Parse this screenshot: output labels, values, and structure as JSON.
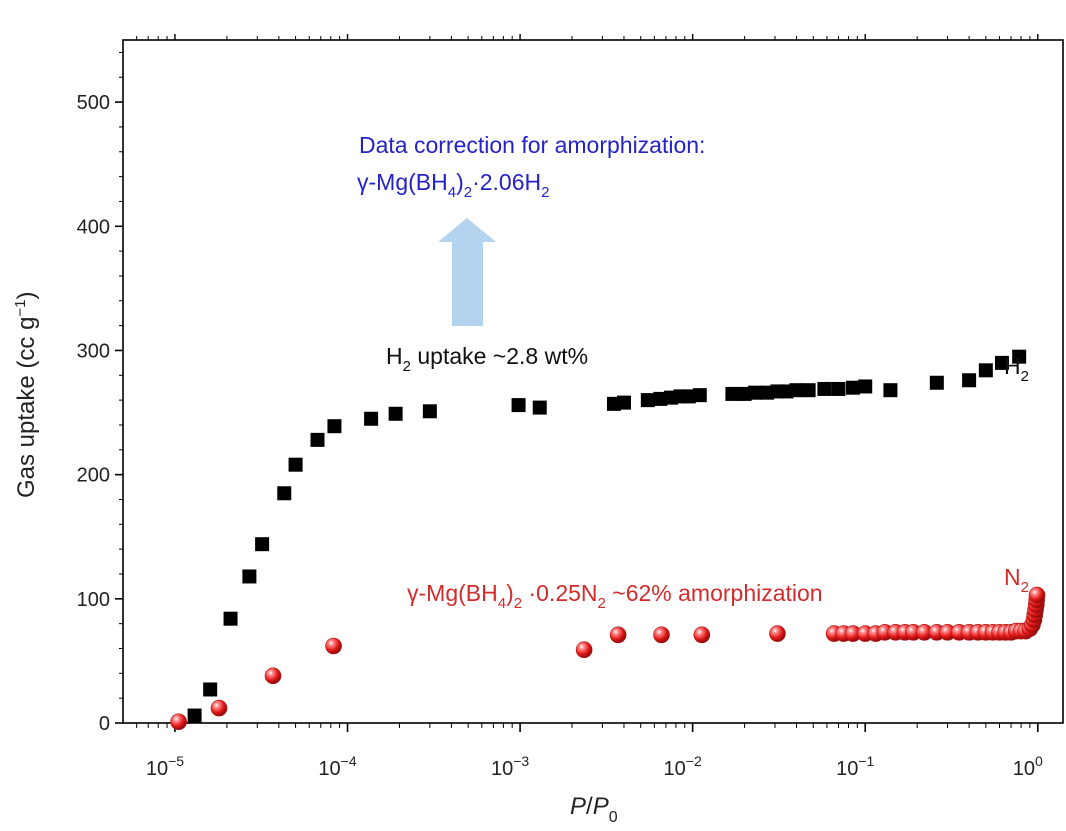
{
  "chart_data": {
    "type": "scatter",
    "xscale": "log",
    "xlim": [
      5e-06,
      1.4
    ],
    "ylim": [
      0,
      550
    ],
    "xlabel": {
      "main": "P",
      "sep": "/",
      "main2": "P",
      "sub": "0"
    },
    "ylabel": {
      "main": "Gas uptake (cc g",
      "sup": "−1",
      "end": ")"
    },
    "x_ticks": [
      {
        "value": 1e-05,
        "base": "10",
        "exp": "−5"
      },
      {
        "value": 0.0001,
        "base": "10",
        "exp": "−4"
      },
      {
        "value": 0.001,
        "base": "10",
        "exp": "−3"
      },
      {
        "value": 0.01,
        "base": "10",
        "exp": "−2"
      },
      {
        "value": 0.1,
        "base": "10",
        "exp": "−1"
      },
      {
        "value": 1,
        "base": "10",
        "exp": "0"
      }
    ],
    "y_ticks": [
      {
        "value": 0,
        "label": "0"
      },
      {
        "value": 100,
        "label": "100"
      },
      {
        "value": 200,
        "label": "200"
      },
      {
        "value": 300,
        "label": "300"
      },
      {
        "value": 400,
        "label": "400"
      },
      {
        "value": 500,
        "label": "500"
      }
    ],
    "series": [
      {
        "name": "H2",
        "label": {
          "main": "H",
          "sub": "2"
        },
        "marker": "square",
        "color": "#000000",
        "points": [
          [
            1.3e-05,
            6
          ],
          [
            1.6e-05,
            27
          ],
          [
            2.1e-05,
            84
          ],
          [
            2.7e-05,
            118
          ],
          [
            3.2e-05,
            144
          ],
          [
            4.3e-05,
            185
          ],
          [
            5e-05,
            208
          ],
          [
            6.7e-05,
            228
          ],
          [
            8.4e-05,
            239
          ],
          [
            0.000137,
            245
          ],
          [
            0.00019,
            249
          ],
          [
            0.0003,
            251
          ],
          [
            0.00098,
            256
          ],
          [
            0.0013,
            254
          ],
          [
            0.0035,
            257
          ],
          [
            0.004,
            258
          ],
          [
            0.0055,
            260
          ],
          [
            0.0065,
            261
          ],
          [
            0.0075,
            262
          ],
          [
            0.0085,
            263
          ],
          [
            0.0095,
            263
          ],
          [
            0.011,
            264
          ],
          [
            0.017,
            265
          ],
          [
            0.02,
            265
          ],
          [
            0.023,
            266
          ],
          [
            0.027,
            266
          ],
          [
            0.031,
            267
          ],
          [
            0.035,
            267
          ],
          [
            0.04,
            268
          ],
          [
            0.047,
            268
          ],
          [
            0.058,
            269
          ],
          [
            0.07,
            269
          ],
          [
            0.085,
            270
          ],
          [
            0.1,
            271
          ],
          [
            0.14,
            268
          ],
          [
            0.26,
            274
          ],
          [
            0.4,
            276
          ],
          [
            0.5,
            284
          ],
          [
            0.62,
            290
          ],
          [
            0.78,
            295
          ]
        ]
      },
      {
        "name": "N2",
        "label": {
          "main": "N",
          "sub": "2"
        },
        "marker": "sphere",
        "color": "#dd1b1b",
        "points": [
          [
            1.05e-05,
            1
          ],
          [
            1.8e-05,
            12
          ],
          [
            3.7e-05,
            38
          ],
          [
            8.3e-05,
            62
          ],
          [
            0.00235,
            59
          ],
          [
            0.0037,
            71
          ],
          [
            0.0066,
            71
          ],
          [
            0.0113,
            71
          ],
          [
            0.031,
            72
          ],
          [
            0.066,
            72
          ],
          [
            0.075,
            72
          ],
          [
            0.085,
            72
          ],
          [
            0.1,
            72
          ],
          [
            0.115,
            72
          ],
          [
            0.13,
            73
          ],
          [
            0.15,
            73
          ],
          [
            0.17,
            73
          ],
          [
            0.19,
            73
          ],
          [
            0.22,
            73
          ],
          [
            0.26,
            73
          ],
          [
            0.3,
            73
          ],
          [
            0.35,
            73
          ],
          [
            0.4,
            73
          ],
          [
            0.45,
            73
          ],
          [
            0.5,
            73
          ],
          [
            0.55,
            73
          ],
          [
            0.6,
            73
          ],
          [
            0.65,
            73
          ],
          [
            0.7,
            73
          ],
          [
            0.75,
            74
          ],
          [
            0.8,
            74
          ],
          [
            0.85,
            74
          ],
          [
            0.9,
            76
          ],
          [
            0.93,
            79
          ],
          [
            0.95,
            83
          ],
          [
            0.96,
            87
          ],
          [
            0.97,
            91
          ],
          [
            0.98,
            95
          ],
          [
            0.985,
            99
          ],
          [
            0.99,
            103
          ]
        ]
      }
    ],
    "annotations": {
      "correction_line1": "Data correction for amorphization:",
      "correction_line2": {
        "p1": "γ-Mg(BH",
        "s1": "4",
        "p2": ")",
        "s2": "2",
        "p3": "·2.06H",
        "s3": "2"
      },
      "h2_uptake": {
        "p1": "H",
        "s1": "2",
        "p2": " uptake ~2.8 wt%"
      },
      "n2_note": {
        "p1": "γ-Mg(BH",
        "s1": "4",
        "p2": ")",
        "s2": "2",
        "p3": " ·0.25N",
        "s3": "2",
        "p4": " ~62% amorphization"
      }
    },
    "colors": {
      "correction_text": "#2323c8",
      "arrow": "#b4d3ee",
      "n2_text": "#d22b2b"
    }
  }
}
